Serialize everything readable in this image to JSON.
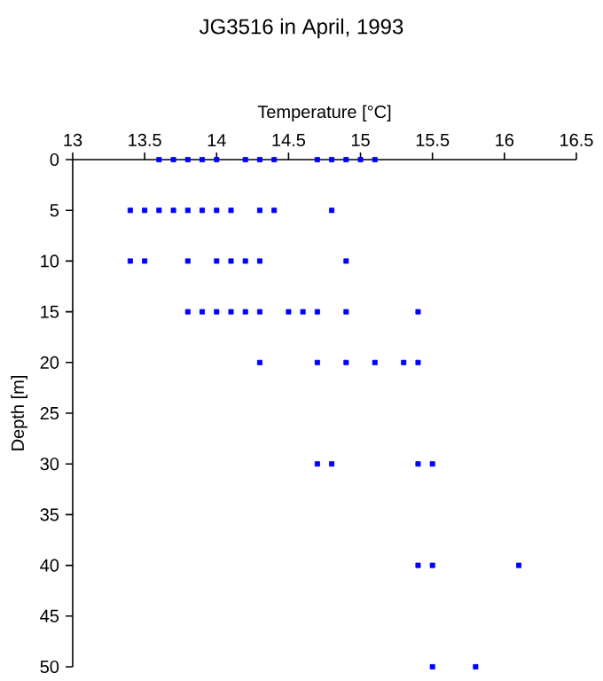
{
  "chart_data": {
    "type": "scatter",
    "title": "JG3516 in April, 1993",
    "xlabel": "Temperature [°C]",
    "ylabel": "Depth [m]",
    "xlim": [
      13,
      16.5
    ],
    "xticks": [
      13,
      13.5,
      14,
      14.5,
      15,
      15.5,
      16,
      16.5
    ],
    "ylim": [
      50,
      0
    ],
    "yticks": [
      0,
      5,
      10,
      15,
      20,
      25,
      30,
      35,
      40,
      45,
      50
    ],
    "marker": "square",
    "series": [
      {
        "color": "#0000ff",
        "x": [
          13.6,
          13.7,
          13.8,
          13.9,
          14.0,
          14.2,
          14.3,
          14.4,
          14.7,
          14.8,
          14.9,
          15.0,
          15.1,
          13.4,
          13.5,
          13.6,
          13.7,
          13.8,
          13.9,
          14.0,
          14.1,
          14.3,
          14.4,
          14.8,
          13.4,
          13.5,
          13.8,
          14.0,
          14.1,
          14.2,
          14.3,
          14.9,
          13.8,
          13.9,
          14.0,
          14.1,
          14.2,
          14.3,
          14.5,
          14.6,
          14.7,
          14.9,
          15.4,
          14.3,
          14.7,
          14.9,
          15.1,
          15.3,
          15.4,
          14.7,
          14.8,
          15.4,
          15.5,
          15.4,
          15.5,
          16.1,
          15.5,
          15.8
        ],
        "values": [
          0,
          0,
          0,
          0,
          0,
          0,
          0,
          0,
          0,
          0,
          0,
          0,
          0,
          5,
          5,
          5,
          5,
          5,
          5,
          5,
          5,
          5,
          5,
          5,
          10,
          10,
          10,
          10,
          10,
          10,
          10,
          10,
          15,
          15,
          15,
          15,
          15,
          15,
          15,
          15,
          15,
          15,
          15,
          20,
          20,
          20,
          20,
          20,
          20,
          30,
          30,
          30,
          30,
          40,
          40,
          40,
          50,
          50
        ]
      }
    ]
  }
}
